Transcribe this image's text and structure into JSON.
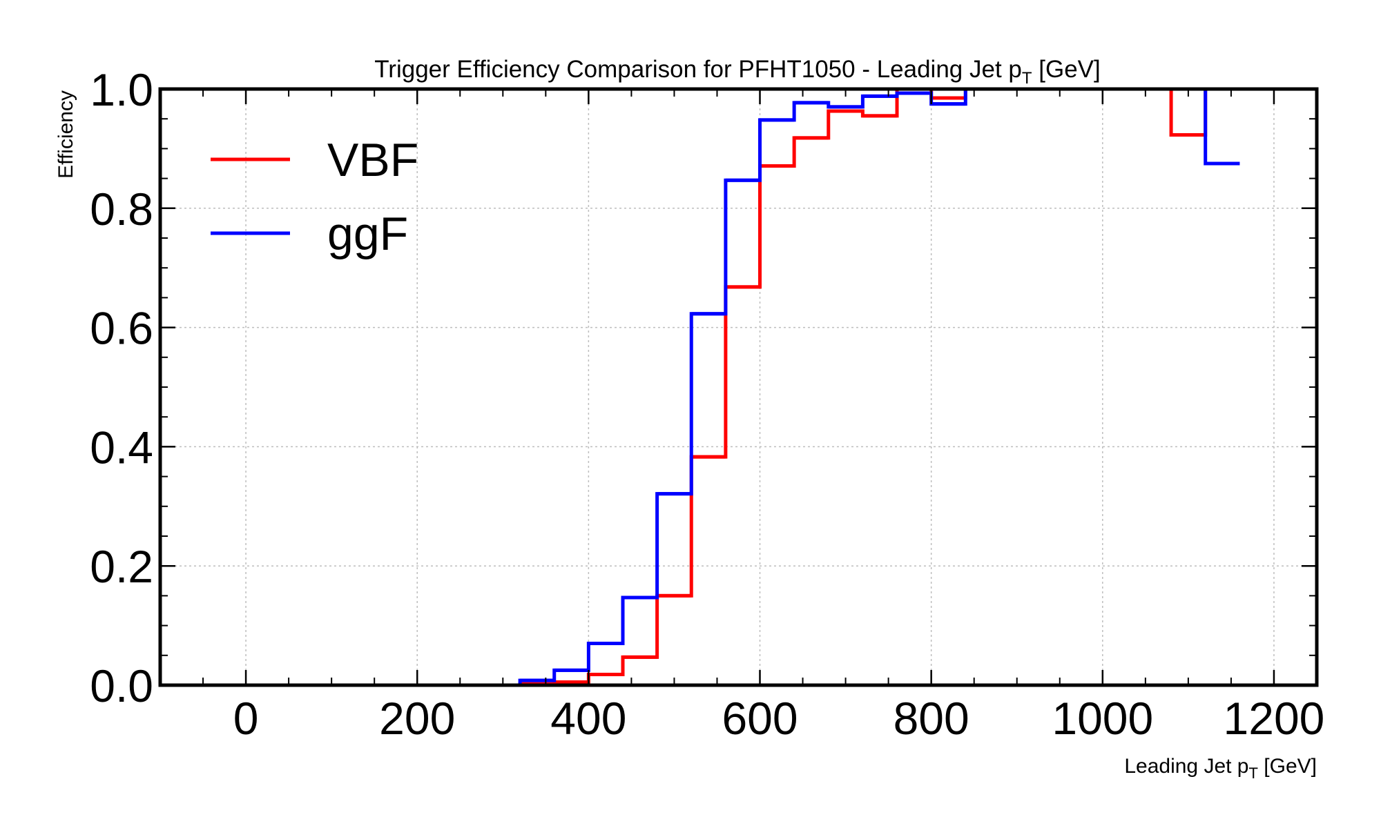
{
  "chart_data": {
    "type": "line",
    "drawstyle": "step-histogram",
    "title": "Trigger Efficiency Comparison for PFHT1050 - Leading Jet p",
    "title_subscript": "T",
    "title_suffix": " [GeV]",
    "xlabel": "Leading Jet p",
    "xlabel_subscript": "T",
    "xlabel_suffix": " [GeV]",
    "ylabel": "Efficiency",
    "xlim": [
      -100,
      1250
    ],
    "ylim": [
      0.0,
      1.0
    ],
    "xticks": [
      0,
      200,
      400,
      600,
      800,
      1000,
      1200
    ],
    "xtick_labels": [
      "0",
      "200",
      "400",
      "600",
      "800",
      "1000",
      "1200"
    ],
    "yticks": [
      0.0,
      0.2,
      0.4,
      0.6,
      0.8,
      1.0
    ],
    "ytick_labels": [
      "0.0",
      "0.2",
      "0.4",
      "0.6",
      "0.8",
      "1.0"
    ],
    "grid": true,
    "legend_position": "top-left",
    "series": [
      {
        "name": "VBF",
        "color": "#ff0000",
        "bins": [
          {
            "x0": 280,
            "x1": 320,
            "y": 0.0
          },
          {
            "x0": 320,
            "x1": 360,
            "y": 0.002
          },
          {
            "x0": 360,
            "x1": 400,
            "y": 0.005
          },
          {
            "x0": 400,
            "x1": 440,
            "y": 0.018
          },
          {
            "x0": 440,
            "x1": 480,
            "y": 0.047
          },
          {
            "x0": 480,
            "x1": 520,
            "y": 0.15
          },
          {
            "x0": 520,
            "x1": 560,
            "y": 0.383
          },
          {
            "x0": 560,
            "x1": 600,
            "y": 0.668
          },
          {
            "x0": 600,
            "x1": 640,
            "y": 0.871
          },
          {
            "x0": 640,
            "x1": 680,
            "y": 0.918
          },
          {
            "x0": 680,
            "x1": 720,
            "y": 0.963
          },
          {
            "x0": 720,
            "x1": 760,
            "y": 0.955
          },
          {
            "x0": 760,
            "x1": 800,
            "y": 1.0
          },
          {
            "x0": 800,
            "x1": 840,
            "y": 0.985
          },
          {
            "x0": 840,
            "x1": 1080,
            "y": 1.0
          },
          {
            "x0": 1080,
            "x1": 1120,
            "y": 0.923
          },
          {
            "x0": 1120,
            "x1": 1160,
            "y": 1.0
          }
        ]
      },
      {
        "name": "ggF",
        "color": "#0000ff",
        "bins": [
          {
            "x0": 280,
            "x1": 320,
            "y": 0.0
          },
          {
            "x0": 320,
            "x1": 360,
            "y": 0.008
          },
          {
            "x0": 360,
            "x1": 400,
            "y": 0.025
          },
          {
            "x0": 400,
            "x1": 440,
            "y": 0.07
          },
          {
            "x0": 440,
            "x1": 480,
            "y": 0.147
          },
          {
            "x0": 480,
            "x1": 520,
            "y": 0.321
          },
          {
            "x0": 520,
            "x1": 560,
            "y": 0.623
          },
          {
            "x0": 560,
            "x1": 600,
            "y": 0.847
          },
          {
            "x0": 600,
            "x1": 640,
            "y": 0.948
          },
          {
            "x0": 640,
            "x1": 680,
            "y": 0.977
          },
          {
            "x0": 680,
            "x1": 720,
            "y": 0.97
          },
          {
            "x0": 720,
            "x1": 760,
            "y": 0.988
          },
          {
            "x0": 760,
            "x1": 800,
            "y": 0.993
          },
          {
            "x0": 800,
            "x1": 840,
            "y": 0.975
          },
          {
            "x0": 840,
            "x1": 1120,
            "y": 1.0
          },
          {
            "x0": 1120,
            "x1": 1160,
            "y": 0.875
          }
        ]
      }
    ]
  }
}
